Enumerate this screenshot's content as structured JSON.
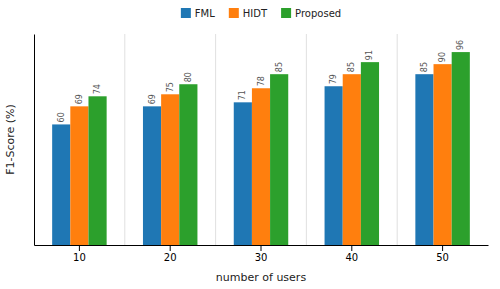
{
  "chart_data": {
    "type": "bar",
    "xlabel": "number of users",
    "ylabel": "F1-Score (%)",
    "categories": [
      "10",
      "20",
      "30",
      "40",
      "50"
    ],
    "series": [
      {
        "name": "FML",
        "values": [
          60,
          69,
          71,
          79,
          85
        ]
      },
      {
        "name": "HIDT",
        "values": [
          69,
          75,
          78,
          85,
          90
        ]
      },
      {
        "name": "Proposed",
        "values": [
          74,
          80,
          85,
          91,
          96
        ]
      }
    ],
    "ylim": [
      0,
      105
    ],
    "yticks": [],
    "tick_labels": "x",
    "data_labels": true,
    "legend": "top",
    "grid": false
  }
}
